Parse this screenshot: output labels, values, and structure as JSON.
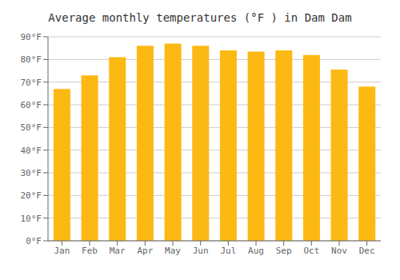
{
  "chart_data": {
    "type": "bar",
    "title": "Average monthly temperatures (°F ) in Dam Dam",
    "categories": [
      "Jan",
      "Feb",
      "Mar",
      "Apr",
      "May",
      "Jun",
      "Jul",
      "Aug",
      "Sep",
      "Oct",
      "Nov",
      "Dec"
    ],
    "values": [
      67,
      73,
      81,
      86,
      87,
      86,
      84,
      83.5,
      84,
      82,
      75.5,
      68
    ],
    "color": "#FDB913",
    "ylim": [
      0,
      90
    ],
    "yticks": [
      {
        "value": 0,
        "label": "0°F"
      },
      {
        "value": 10,
        "label": "10°F"
      },
      {
        "value": 20,
        "label": "20°F"
      },
      {
        "value": 30,
        "label": "30°F"
      },
      {
        "value": 40,
        "label": "40°F"
      },
      {
        "value": 50,
        "label": "50°F"
      },
      {
        "value": 60,
        "label": "60°F"
      },
      {
        "value": 70,
        "label": "70°F"
      },
      {
        "value": 80,
        "label": "80°F"
      },
      {
        "value": 90,
        "label": "90°F"
      }
    ],
    "grid": true
  }
}
